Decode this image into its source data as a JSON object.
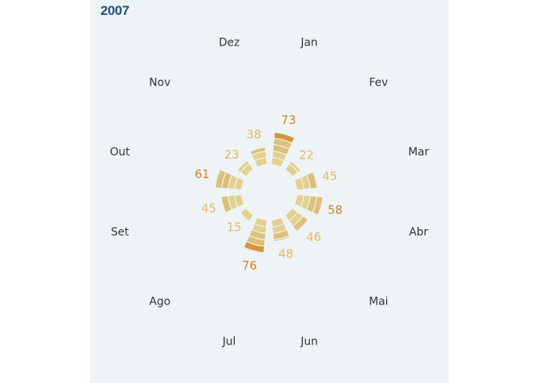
{
  "title": "2007",
  "chart_data": {
    "type": "radial-bar",
    "title": "2007",
    "categories": [
      "Jan",
      "Fev",
      "Mar",
      "Abr",
      "Mai",
      "Jun",
      "Jul",
      "Ago",
      "Set",
      "Out",
      "Nov",
      "Dez"
    ],
    "values": [
      73,
      22,
      45,
      58,
      46,
      48,
      76,
      15,
      45,
      61,
      23,
      38
    ],
    "segment_step": 15,
    "colors": {
      "segment_light": "#e4d08e",
      "segment_mid": "#dcc07a",
      "segment_dark": "#d4953c",
      "label_high": "#d4822c",
      "label_low": "#ddbb68",
      "month_text": "#333333",
      "panel_bg": "#eef3f6",
      "title": "#1f4e79"
    }
  }
}
